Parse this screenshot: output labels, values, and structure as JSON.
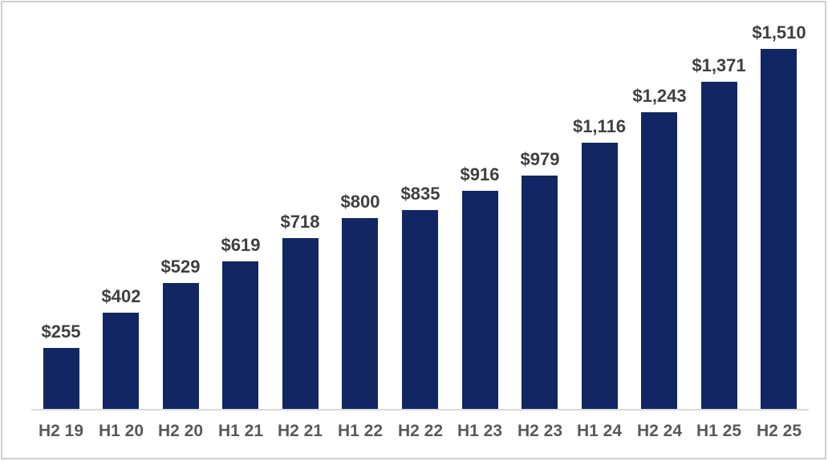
{
  "chart_data": {
    "type": "bar",
    "categories": [
      "H2 19",
      "H1 20",
      "H2 20",
      "H1 21",
      "H2 21",
      "H1 22",
      "H2 22",
      "H1 23",
      "H2 23",
      "H1 24",
      "H2 24",
      "H1 25",
      "H2 25"
    ],
    "values": [
      255,
      402,
      529,
      619,
      718,
      800,
      835,
      916,
      979,
      1116,
      1243,
      1371,
      1510
    ],
    "data_labels": [
      "$255",
      "$402",
      "$529",
      "$619",
      "$718",
      "$800",
      "$835",
      "$916",
      "$979",
      "$1,116",
      "$1,243",
      "$1,371",
      "$1,510"
    ],
    "title": "",
    "xlabel": "",
    "ylabel": "",
    "ylim": [
      0,
      1510
    ],
    "grid": false,
    "legend": false,
    "bar_color": "#112663",
    "value_label_color": "#3F3F3F",
    "axis_label_color": "#595959",
    "axis_line_color": "#D9D9D9",
    "frame_border_color": "#CFCFCF"
  }
}
